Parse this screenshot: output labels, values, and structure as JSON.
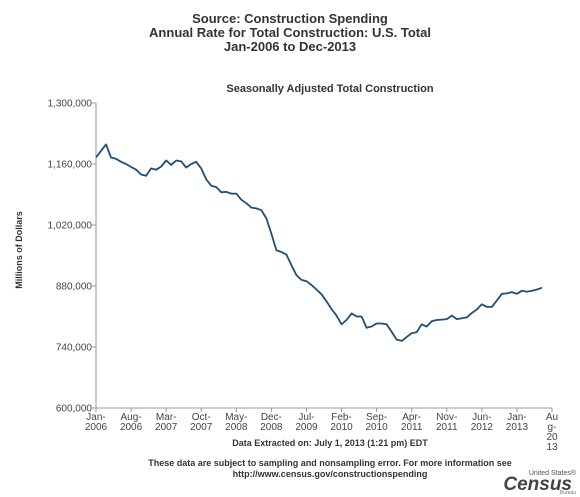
{
  "header": {
    "line1": "Source: Construction Spending",
    "line2": "Annual Rate for Total Construction: U.S. Total",
    "line3": "Jan-2006 to Dec-2013"
  },
  "chart_data": {
    "type": "line",
    "title": "Seasonally Adjusted Total Construction",
    "ylabel": "Millions of Dollars",
    "xlabel": "",
    "ylim": [
      600000,
      1300000
    ],
    "y_ticks": [
      "1,300,000",
      "1,160,000",
      "1,020,000",
      "880,000",
      "740,000",
      "600,000"
    ],
    "y_tick_values": [
      1300000,
      1160000,
      1020000,
      880000,
      740000,
      600000
    ],
    "x_ticks": [
      {
        "lines": [
          "Jan-",
          "2006"
        ],
        "month_index": 0
      },
      {
        "lines": [
          "Aug-",
          "2006"
        ],
        "month_index": 7
      },
      {
        "lines": [
          "Mar-",
          "2007"
        ],
        "month_index": 14
      },
      {
        "lines": [
          "Oct-",
          "2007"
        ],
        "month_index": 21
      },
      {
        "lines": [
          "May-",
          "2008"
        ],
        "month_index": 28
      },
      {
        "lines": [
          "Dec-",
          "2008"
        ],
        "month_index": 35
      },
      {
        "lines": [
          "Jul-",
          "2009"
        ],
        "month_index": 42
      },
      {
        "lines": [
          "Feb-",
          "2010"
        ],
        "month_index": 49
      },
      {
        "lines": [
          "Sep-",
          "2010"
        ],
        "month_index": 56
      },
      {
        "lines": [
          "Apr-",
          "2011"
        ],
        "month_index": 63
      },
      {
        "lines": [
          "Nov-",
          "2011"
        ],
        "month_index": 70
      },
      {
        "lines": [
          "Jun-",
          "2012"
        ],
        "month_index": 77
      },
      {
        "lines": [
          "Jan-",
          "2013"
        ],
        "month_index": 84
      },
      {
        "lines": [
          "Au",
          "g-",
          "20",
          "13"
        ],
        "month_index": 91
      }
    ],
    "grid": false,
    "legend": "none",
    "line_color": "#1f4e79",
    "x_range": [
      "Jan-2006",
      "Aug-2013"
    ],
    "series": [
      {
        "name": "",
        "values": [
          1175000,
          1190000,
          1205000,
          1175000,
          1172000,
          1165000,
          1160000,
          1153000,
          1147000,
          1136000,
          1133000,
          1150000,
          1147000,
          1154000,
          1168000,
          1158000,
          1168000,
          1166000,
          1152000,
          1160000,
          1165000,
          1150000,
          1125000,
          1110000,
          1107000,
          1095000,
          1096000,
          1092000,
          1092000,
          1078000,
          1070000,
          1060000,
          1058000,
          1054000,
          1035000,
          1000000,
          962000,
          958000,
          952000,
          928000,
          905000,
          894000,
          891000,
          882000,
          872000,
          861000,
          845000,
          827000,
          812000,
          792000,
          802000,
          817000,
          810000,
          810000,
          784000,
          787000,
          794000,
          794000,
          792000,
          775000,
          757000,
          754000,
          763000,
          772000,
          774000,
          792000,
          787000,
          799000,
          802000,
          803000,
          804000,
          812000,
          804000,
          806000,
          808000,
          818000,
          826000,
          838000,
          832000,
          832000,
          847000,
          862000,
          863000,
          866000,
          862000,
          869000,
          867000,
          869000,
          872000,
          876000
        ]
      }
    ]
  },
  "footer": {
    "extract": "Data Extracted on: July 1, 2013 (1:21 pm) EDT",
    "note_line1": "These data are subject to sampling and nonsampling error. For more information see",
    "note_line2": "http://www.census.gov/constructionspending"
  },
  "logo": {
    "top": "United States®",
    "main": "Census",
    "bottom": "Bureau"
  }
}
